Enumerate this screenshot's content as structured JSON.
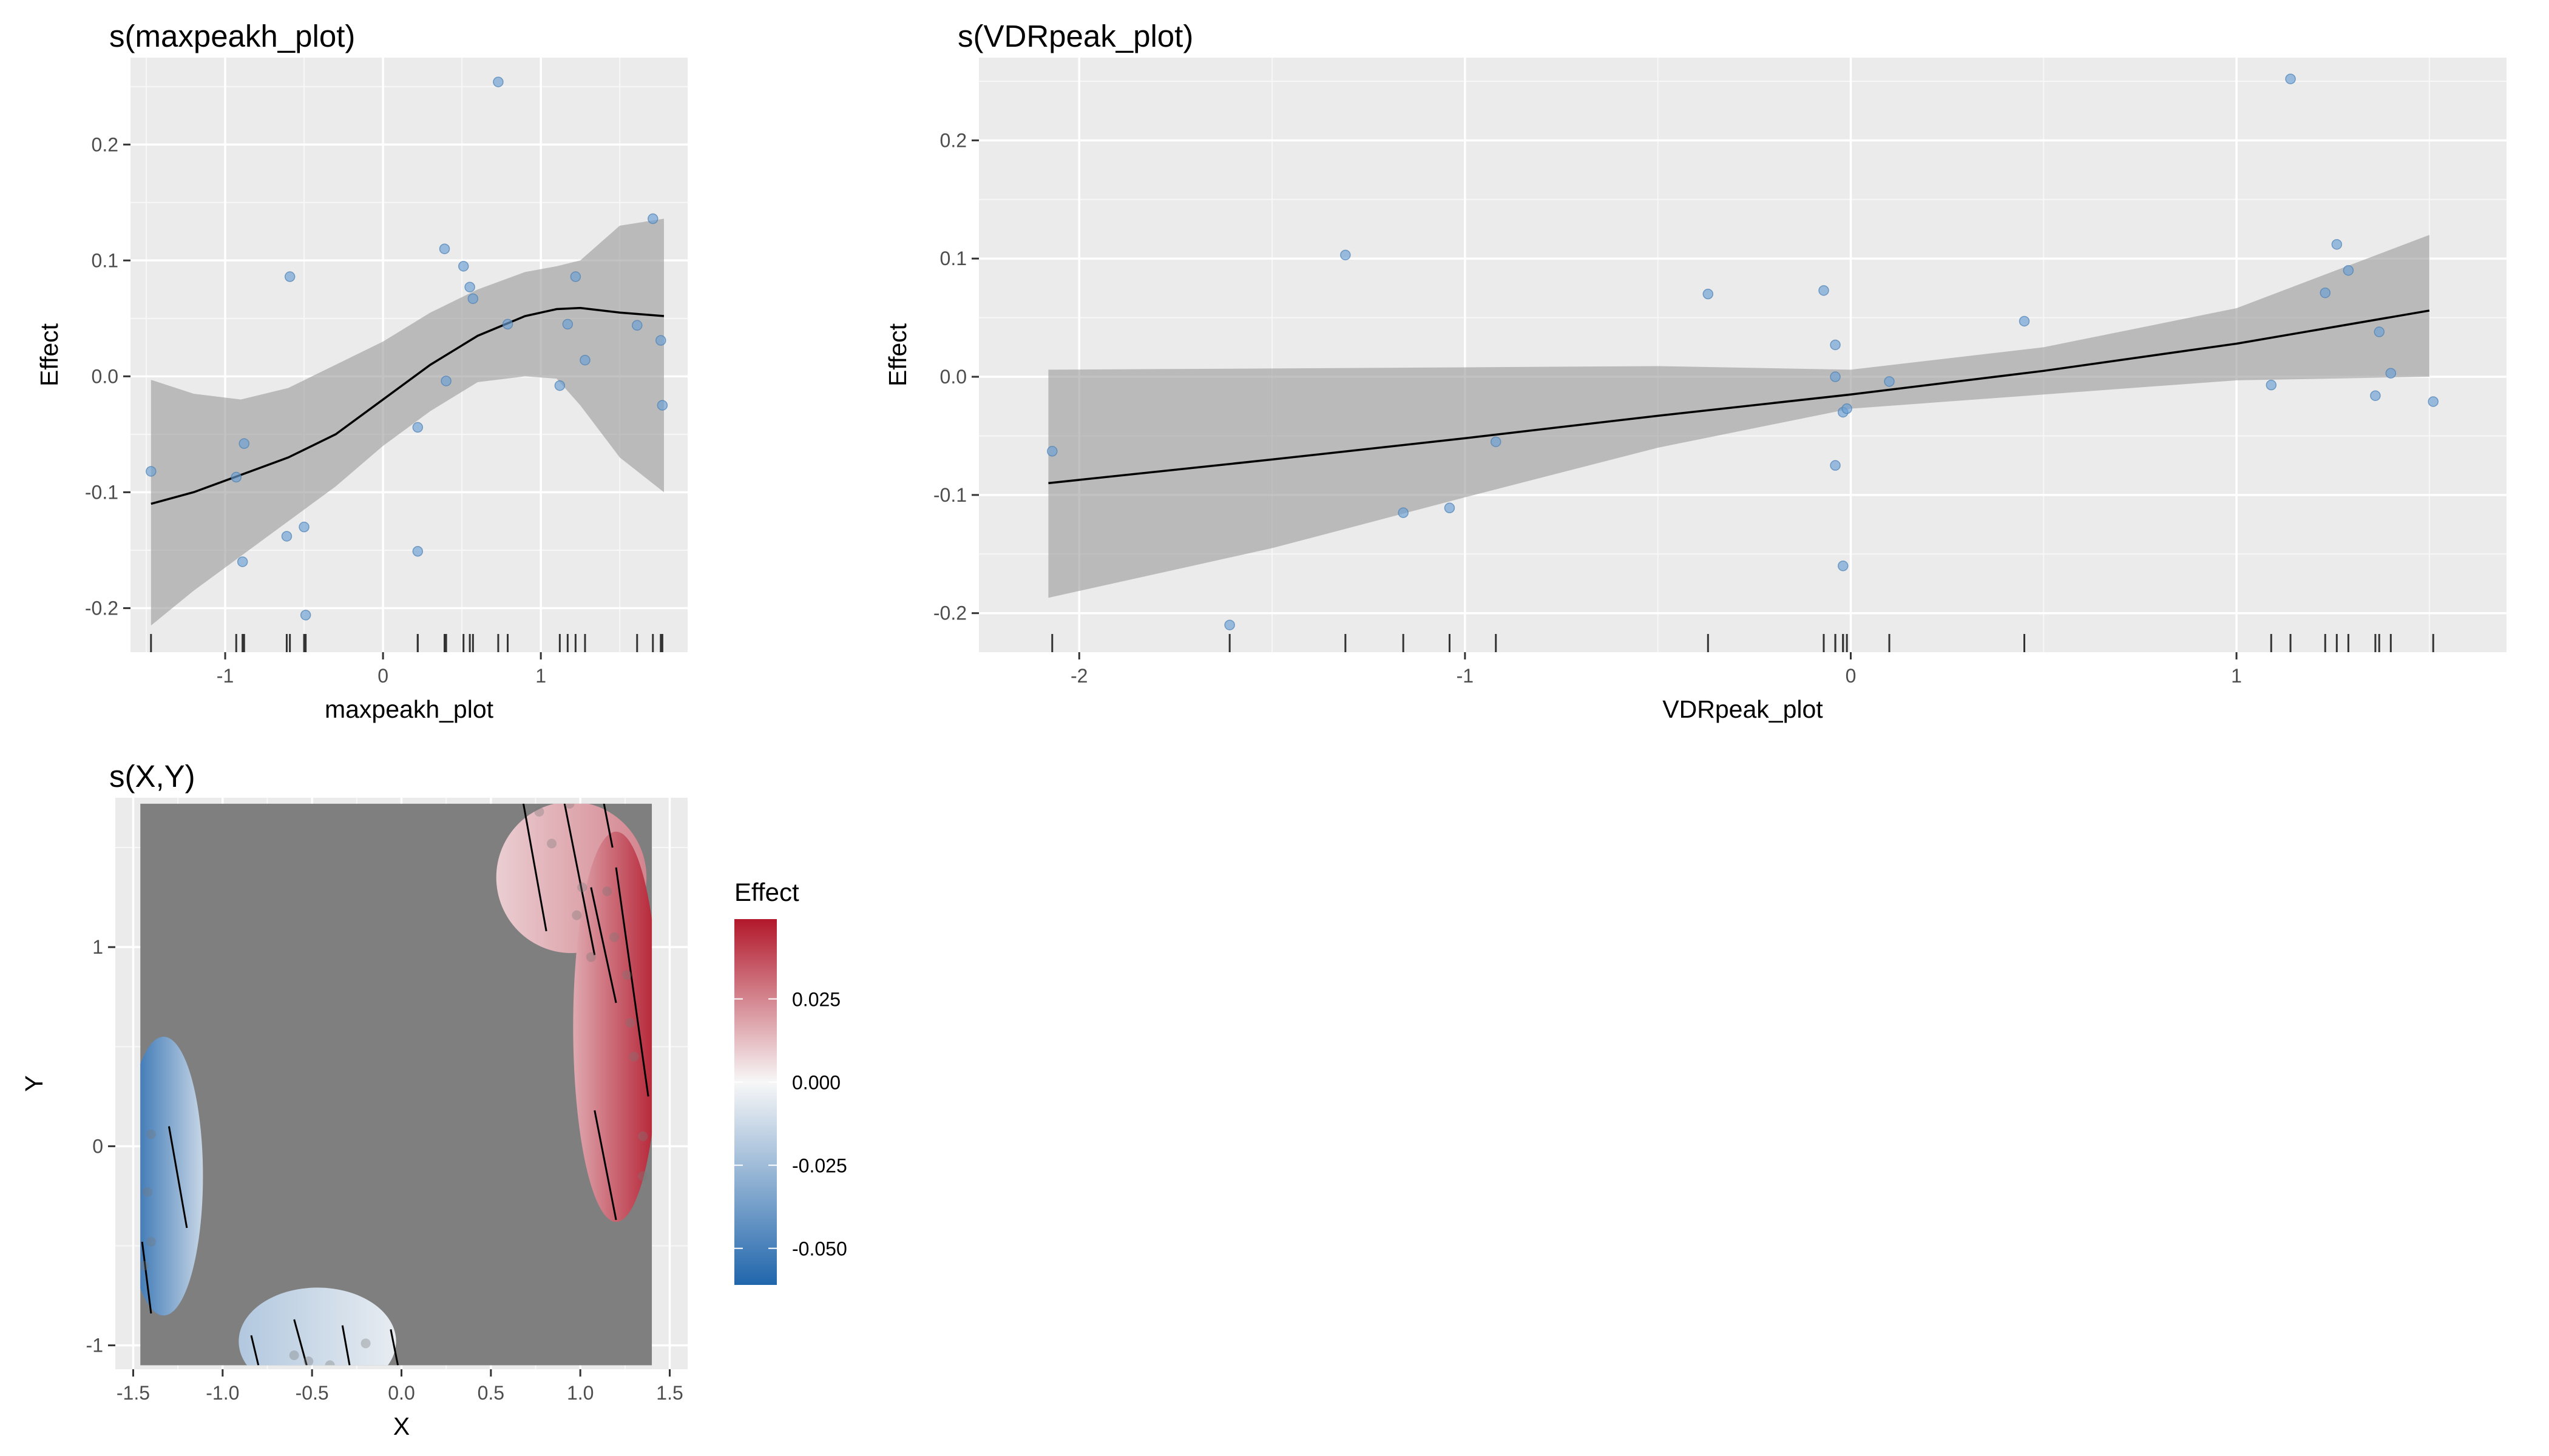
{
  "chart_data": [
    {
      "type": "line",
      "title": "s(maxpeakh_plot)",
      "xlabel": "maxpeakh_plot",
      "ylabel": "Effect",
      "xlim": [
        -1.6,
        1.93
      ],
      "ylim": [
        -0.238,
        0.275
      ],
      "xticks": [
        {
          "v": -1,
          "label": "-1"
        },
        {
          "v": 0,
          "label": "0"
        },
        {
          "v": 1,
          "label": "1"
        }
      ],
      "yticks": [
        {
          "v": -0.2,
          "label": "-0.2"
        },
        {
          "v": -0.1,
          "label": "-0.1"
        },
        {
          "v": 0,
          "label": "0.0"
        },
        {
          "v": 0.1,
          "label": "0.1"
        },
        {
          "v": 0.2,
          "label": "0.2"
        }
      ],
      "grid": true,
      "smooth": {
        "x": [
          -1.47,
          -1.2,
          -0.9,
          -0.6,
          -0.3,
          0.0,
          0.3,
          0.6,
          0.9,
          1.1,
          1.25,
          1.5,
          1.78
        ],
        "y": [
          -0.11,
          -0.1,
          -0.085,
          -0.07,
          -0.05,
          -0.02,
          0.01,
          0.035,
          0.052,
          0.058,
          0.059,
          0.055,
          0.052
        ],
        "lower": [
          -0.215,
          -0.185,
          -0.155,
          -0.125,
          -0.095,
          -0.06,
          -0.03,
          -0.005,
          0.0,
          -0.002,
          -0.025,
          -0.07,
          -0.1
        ],
        "upper": [
          -0.003,
          -0.015,
          -0.02,
          -0.01,
          0.01,
          0.03,
          0.055,
          0.075,
          0.09,
          0.095,
          0.1,
          0.13,
          0.136
        ]
      },
      "points": {
        "x": [
          -1.47,
          -0.93,
          -0.89,
          -0.88,
          -0.61,
          -0.59,
          -0.5,
          -0.49,
          0.22,
          0.22,
          0.39,
          0.4,
          0.51,
          0.55,
          0.57,
          0.73,
          0.79,
          1.12,
          1.17,
          1.22,
          1.28,
          1.61,
          1.71,
          1.76,
          1.77
        ],
        "y": [
          -0.082,
          -0.087,
          -0.16,
          -0.058,
          -0.138,
          0.086,
          -0.13,
          -0.206,
          -0.044,
          -0.151,
          0.11,
          -0.004,
          0.095,
          0.077,
          0.067,
          0.254,
          0.045,
          -0.008,
          0.045,
          0.086,
          0.014,
          0.044,
          0.136,
          0.031,
          -0.025
        ]
      },
      "rug": [
        -1.47,
        -0.93,
        -0.89,
        -0.88,
        -0.61,
        -0.59,
        -0.5,
        -0.49,
        0.22,
        0.22,
        0.39,
        0.4,
        0.51,
        0.55,
        0.57,
        0.73,
        0.79,
        1.12,
        1.17,
        1.22,
        1.28,
        1.61,
        1.71,
        1.76,
        1.77
      ]
    },
    {
      "type": "line",
      "title": "s(VDRpeak_plot)",
      "xlabel": "VDRpeak_plot",
      "ylabel": "Effect",
      "xlim": [
        -2.26,
        1.7
      ],
      "ylim": [
        -0.233,
        0.27
      ],
      "xticks": [
        {
          "v": -2,
          "label": "-2"
        },
        {
          "v": -1,
          "label": "-1"
        },
        {
          "v": 0,
          "label": "0"
        },
        {
          "v": 1,
          "label": "1"
        }
      ],
      "yticks": [
        {
          "v": -0.2,
          "label": "-0.2"
        },
        {
          "v": -0.1,
          "label": "-0.1"
        },
        {
          "v": 0,
          "label": "0.0"
        },
        {
          "v": 0.1,
          "label": "0.1"
        },
        {
          "v": 0.2,
          "label": "0.2"
        }
      ],
      "grid": true,
      "smooth": {
        "x": [
          -2.08,
          -1.5,
          -1.0,
          -0.5,
          0.0,
          0.5,
          1.0,
          1.5
        ],
        "y": [
          -0.09,
          -0.07,
          -0.052,
          -0.033,
          -0.015,
          0.005,
          0.028,
          0.056
        ],
        "lower": [
          -0.187,
          -0.145,
          -0.102,
          -0.06,
          -0.027,
          -0.015,
          -0.003,
          0.0
        ],
        "upper": [
          0.006,
          0.007,
          0.008,
          0.009,
          0.006,
          0.025,
          0.058,
          0.12
        ]
      },
      "points": {
        "x": [
          -2.07,
          -1.61,
          -1.31,
          -1.16,
          -1.04,
          -0.92,
          -0.37,
          -0.07,
          -0.04,
          -0.04,
          -0.04,
          -0.02,
          -0.02,
          -0.01,
          0.1,
          0.45,
          1.09,
          1.14,
          1.23,
          1.26,
          1.29,
          1.36,
          1.37,
          1.4,
          1.51
        ],
        "y": [
          -0.063,
          -0.21,
          0.103,
          -0.115,
          -0.111,
          -0.055,
          0.07,
          0.073,
          0.027,
          0.0,
          -0.075,
          -0.16,
          -0.03,
          -0.027,
          -0.004,
          0.047,
          -0.007,
          0.252,
          0.071,
          0.112,
          0.09,
          -0.016,
          0.038,
          0.003,
          -0.021
        ]
      },
      "rug": [
        -2.07,
        -1.61,
        -1.31,
        -1.16,
        -1.04,
        -0.92,
        -0.37,
        -0.07,
        -0.04,
        -0.04,
        -0.04,
        -0.02,
        -0.02,
        -0.01,
        0.1,
        0.45,
        1.09,
        1.14,
        1.23,
        1.26,
        1.29,
        1.36,
        1.37,
        1.4,
        1.51
      ]
    },
    {
      "type": "heatmap",
      "title": "s(X,Y)",
      "xlabel": "X",
      "ylabel": "Y",
      "xlim": [
        -1.6,
        1.6
      ],
      "ylim": [
        -1.12,
        1.75
      ],
      "xticks": [
        {
          "v": -1.5,
          "label": "-1.5"
        },
        {
          "v": -1.0,
          "label": "-1.0"
        },
        {
          "v": -0.5,
          "label": "-0.5"
        },
        {
          "v": 0.0,
          "label": "0.0"
        },
        {
          "v": 0.5,
          "label": "0.5"
        },
        {
          "v": 1.0,
          "label": "1.0"
        },
        {
          "v": 1.5,
          "label": "1.5"
        }
      ],
      "yticks": [
        {
          "v": -1,
          "label": "-1"
        },
        {
          "v": 0,
          "label": "0"
        },
        {
          "v": 1,
          "label": "1"
        }
      ],
      "grid": true,
      "background_color": "#7f7f7f",
      "data_extent": {
        "x": [
          -1.46,
          1.4
        ],
        "y": [
          -1.1,
          1.72
        ]
      },
      "regions": [
        {
          "name": "top-right",
          "cx": 0.95,
          "cy": 1.35,
          "rx": 0.42,
          "ry": 0.38,
          "value": 0.02
        },
        {
          "name": "right-edge",
          "cx": 1.2,
          "cy": 0.6,
          "rx": 0.24,
          "ry": 0.98,
          "value": 0.038
        },
        {
          "name": "left-edge",
          "cx": -1.33,
          "cy": -0.15,
          "rx": 0.22,
          "ry": 0.7,
          "value": -0.055
        },
        {
          "name": "bottom",
          "cx": -0.47,
          "cy": -0.98,
          "rx": 0.44,
          "ry": 0.27,
          "value": -0.018
        }
      ],
      "contours": [
        [
          [
            0.68,
            1.73
          ],
          [
            0.81,
            1.08
          ]
        ],
        [
          [
            0.91,
            1.73
          ],
          [
            1.08,
            0.96
          ]
        ],
        [
          [
            1.13,
            1.73
          ],
          [
            1.18,
            1.5
          ]
        ],
        [
          [
            1.06,
            1.3
          ],
          [
            1.2,
            0.72
          ]
        ],
        [
          [
            1.2,
            1.4
          ],
          [
            1.38,
            0.25
          ]
        ],
        [
          [
            1.08,
            0.18
          ],
          [
            1.2,
            -0.37
          ]
        ],
        [
          [
            -1.3,
            0.1
          ],
          [
            -1.2,
            -0.41
          ]
        ],
        [
          [
            -1.45,
            -0.48
          ],
          [
            -1.4,
            -0.84
          ]
        ],
        [
          [
            -0.84,
            -0.95
          ],
          [
            -0.8,
            -1.1
          ]
        ],
        [
          [
            -0.6,
            -0.87
          ],
          [
            -0.53,
            -1.1
          ]
        ],
        [
          [
            -0.33,
            -0.9
          ],
          [
            -0.29,
            -1.1
          ]
        ],
        [
          [
            -0.06,
            -0.92
          ],
          [
            -0.02,
            -1.1
          ]
        ]
      ],
      "points": {
        "x": [
          0.77,
          0.84,
          0.94,
          1.01,
          1.06,
          0.98,
          1.15,
          1.19,
          1.26,
          1.28,
          1.3,
          1.35,
          1.35,
          -1.4,
          -1.42,
          -1.4,
          -1.44,
          -0.6,
          -0.52,
          -0.4,
          -0.2
        ],
        "y": [
          1.68,
          1.52,
          1.72,
          1.3,
          0.95,
          1.16,
          1.28,
          1.05,
          0.86,
          0.62,
          0.45,
          0.05,
          -0.15,
          0.06,
          -0.23,
          -0.48,
          -0.6,
          -1.05,
          -1.08,
          -1.1,
          -0.99
        ]
      },
      "legend": {
        "title": "Effect",
        "min": -0.061,
        "max": 0.049,
        "ticks": [
          {
            "v": 0.025,
            "label": "0.025"
          },
          {
            "v": 0.0,
            "label": "0.000"
          },
          {
            "v": -0.025,
            "label": "-0.025"
          },
          {
            "v": -0.05,
            "label": "-0.050"
          }
        ],
        "low_color": "#2166ac",
        "mid_color": "#f7f7f7",
        "high_color": "#b2182b",
        "placement": "right"
      }
    }
  ]
}
